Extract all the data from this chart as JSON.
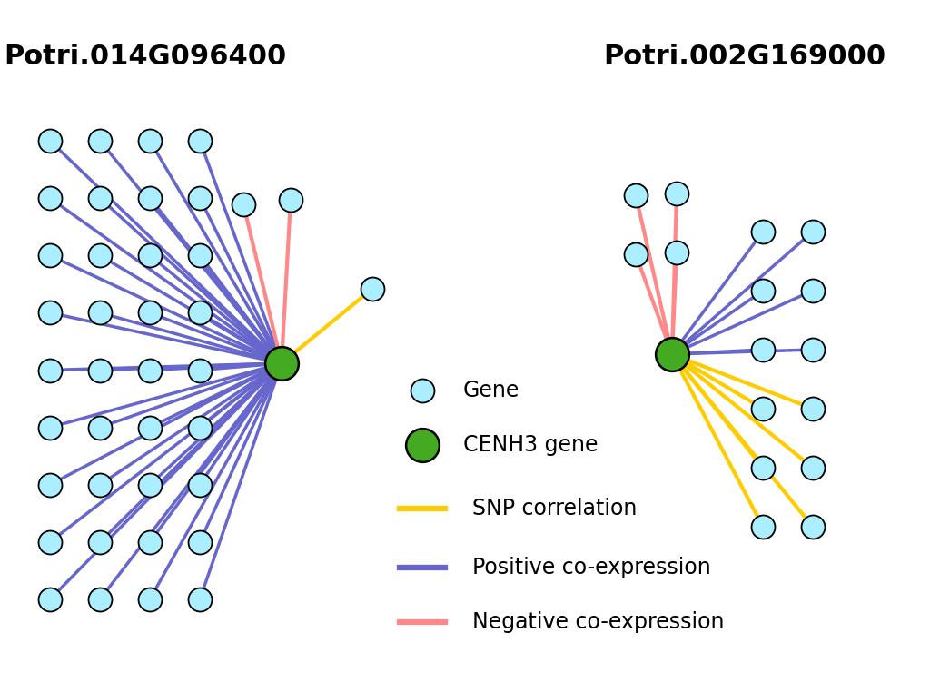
{
  "title1": "Potri.014G096400",
  "title2": "Potri.002G169000",
  "background_color": "#ffffff",
  "gene_color": "#aaeeff",
  "gene_edge_color": "#000000",
  "cenh3_color": "#44aa22",
  "cenh3_edge_color": "#000000",
  "snp_color": "#ffcc00",
  "pos_coexp_color": "#6666cc",
  "neg_coexp_color": "#ff8888",
  "title_fontsize": 22,
  "legend_items": [
    "Gene",
    "CENH3 gene",
    "SNP correlation",
    "Positive co-expression",
    "Negative co-expression"
  ]
}
